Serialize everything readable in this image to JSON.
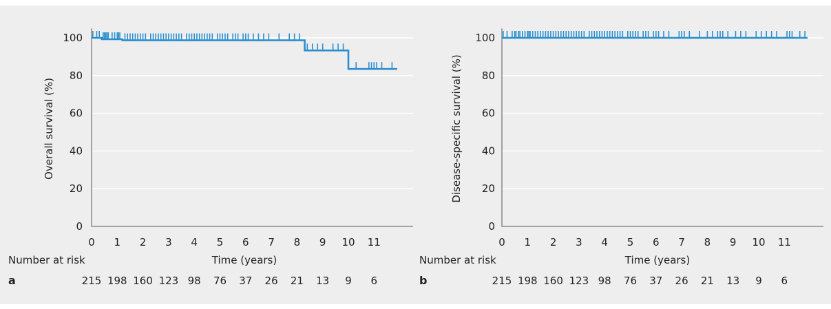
{
  "colors": {
    "curve": "#2a8fcf",
    "grid": "#ffffff",
    "axis": "#555555",
    "background": "#eeeeef"
  },
  "risk_label": "Number at risk",
  "chart_data": [
    {
      "type": "line",
      "panel": "a",
      "ylabel": "Overall survival (%)",
      "xlabel": "Time (years)",
      "xlim": [
        0,
        12
      ],
      "ylim": [
        0,
        105
      ],
      "xticks": [
        0,
        1,
        2,
        3,
        4,
        5,
        6,
        7,
        8,
        9,
        10,
        11
      ],
      "yticks": [
        0,
        20,
        40,
        60,
        80,
        100
      ],
      "grid": "horizontal",
      "series": [
        {
          "steps": [
            [
              0,
              100
            ],
            [
              0.4,
              100
            ],
            [
              0.4,
              99.3
            ],
            [
              1.2,
              99.3
            ],
            [
              1.2,
              98.7
            ],
            [
              8.3,
              98.7
            ],
            [
              8.3,
              93.3
            ],
            [
              10.0,
              93.3
            ],
            [
              10.0,
              83.5
            ],
            [
              11.9,
              83.5
            ]
          ],
          "censor_marks": [
            [
              0.05,
              100
            ],
            [
              0.2,
              100
            ],
            [
              0.3,
              100
            ],
            [
              0.45,
              99.3
            ],
            [
              0.5,
              99.3
            ],
            [
              0.55,
              99.3
            ],
            [
              0.6,
              99.3
            ],
            [
              0.65,
              99.3
            ],
            [
              0.8,
              99.3
            ],
            [
              0.9,
              99.3
            ],
            [
              1.0,
              99.3
            ],
            [
              1.05,
              99.3
            ],
            [
              1.1,
              99.3
            ],
            [
              1.3,
              98.7
            ],
            [
              1.4,
              98.7
            ],
            [
              1.5,
              98.7
            ],
            [
              1.6,
              98.7
            ],
            [
              1.7,
              98.7
            ],
            [
              1.8,
              98.7
            ],
            [
              1.9,
              98.7
            ],
            [
              2.0,
              98.7
            ],
            [
              2.1,
              98.7
            ],
            [
              2.3,
              98.7
            ],
            [
              2.4,
              98.7
            ],
            [
              2.5,
              98.7
            ],
            [
              2.6,
              98.7
            ],
            [
              2.7,
              98.7
            ],
            [
              2.8,
              98.7
            ],
            [
              2.9,
              98.7
            ],
            [
              3.0,
              98.7
            ],
            [
              3.1,
              98.7
            ],
            [
              3.2,
              98.7
            ],
            [
              3.3,
              98.7
            ],
            [
              3.4,
              98.7
            ],
            [
              3.5,
              98.7
            ],
            [
              3.7,
              98.7
            ],
            [
              3.8,
              98.7
            ],
            [
              3.9,
              98.7
            ],
            [
              4.0,
              98.7
            ],
            [
              4.1,
              98.7
            ],
            [
              4.2,
              98.7
            ],
            [
              4.3,
              98.7
            ],
            [
              4.4,
              98.7
            ],
            [
              4.5,
              98.7
            ],
            [
              4.6,
              98.7
            ],
            [
              4.7,
              98.7
            ],
            [
              4.9,
              98.7
            ],
            [
              5.0,
              98.7
            ],
            [
              5.1,
              98.7
            ],
            [
              5.2,
              98.7
            ],
            [
              5.3,
              98.7
            ],
            [
              5.5,
              98.7
            ],
            [
              5.6,
              98.7
            ],
            [
              5.7,
              98.7
            ],
            [
              5.9,
              98.7
            ],
            [
              6.0,
              98.7
            ],
            [
              6.1,
              98.7
            ],
            [
              6.3,
              98.7
            ],
            [
              6.5,
              98.7
            ],
            [
              6.7,
              98.7
            ],
            [
              6.9,
              98.7
            ],
            [
              7.3,
              98.7
            ],
            [
              7.7,
              98.7
            ],
            [
              7.9,
              98.7
            ],
            [
              8.1,
              98.7
            ],
            [
              8.4,
              93.3
            ],
            [
              8.6,
              93.3
            ],
            [
              8.8,
              93.3
            ],
            [
              9.0,
              93.3
            ],
            [
              9.4,
              93.3
            ],
            [
              9.6,
              93.3
            ],
            [
              9.8,
              93.3
            ],
            [
              10.3,
              83.5
            ],
            [
              10.8,
              83.5
            ],
            [
              10.9,
              83.5
            ],
            [
              11.0,
              83.5
            ],
            [
              11.1,
              83.5
            ],
            [
              11.3,
              83.5
            ],
            [
              11.7,
              83.5
            ]
          ]
        }
      ],
      "risk_x": [
        0,
        1,
        2,
        3,
        4,
        5,
        6,
        7,
        8,
        9,
        10,
        11
      ],
      "risk_values": [
        "215",
        "198",
        "160",
        "123",
        "98",
        "76",
        "37",
        "26",
        "21",
        "13",
        "9",
        "6"
      ]
    },
    {
      "type": "line",
      "panel": "b",
      "ylabel": "Disease-specific survival (%)",
      "xlabel": "Time (years)",
      "xlim": [
        0,
        12
      ],
      "ylim": [
        0,
        105
      ],
      "xticks": [
        0,
        1,
        2,
        3,
        4,
        5,
        6,
        7,
        8,
        9,
        10,
        11
      ],
      "yticks": [
        0,
        20,
        40,
        60,
        80,
        100
      ],
      "grid": "horizontal",
      "series": [
        {
          "steps": [
            [
              0,
              100
            ],
            [
              11.9,
              100
            ]
          ],
          "censor_marks": [
            [
              0.05,
              100
            ],
            [
              0.2,
              100
            ],
            [
              0.4,
              100
            ],
            [
              0.5,
              100
            ],
            [
              0.55,
              100
            ],
            [
              0.65,
              100
            ],
            [
              0.7,
              100
            ],
            [
              0.8,
              100
            ],
            [
              0.9,
              100
            ],
            [
              1.0,
              100
            ],
            [
              1.05,
              100
            ],
            [
              1.1,
              100
            ],
            [
              1.2,
              100
            ],
            [
              1.3,
              100
            ],
            [
              1.4,
              100
            ],
            [
              1.5,
              100
            ],
            [
              1.6,
              100
            ],
            [
              1.7,
              100
            ],
            [
              1.8,
              100
            ],
            [
              1.9,
              100
            ],
            [
              2.0,
              100
            ],
            [
              2.1,
              100
            ],
            [
              2.2,
              100
            ],
            [
              2.3,
              100
            ],
            [
              2.4,
              100
            ],
            [
              2.5,
              100
            ],
            [
              2.6,
              100
            ],
            [
              2.7,
              100
            ],
            [
              2.8,
              100
            ],
            [
              2.9,
              100
            ],
            [
              3.0,
              100
            ],
            [
              3.1,
              100
            ],
            [
              3.2,
              100
            ],
            [
              3.4,
              100
            ],
            [
              3.5,
              100
            ],
            [
              3.6,
              100
            ],
            [
              3.7,
              100
            ],
            [
              3.8,
              100
            ],
            [
              3.9,
              100
            ],
            [
              4.0,
              100
            ],
            [
              4.1,
              100
            ],
            [
              4.2,
              100
            ],
            [
              4.3,
              100
            ],
            [
              4.4,
              100
            ],
            [
              4.5,
              100
            ],
            [
              4.6,
              100
            ],
            [
              4.7,
              100
            ],
            [
              4.9,
              100
            ],
            [
              5.0,
              100
            ],
            [
              5.1,
              100
            ],
            [
              5.2,
              100
            ],
            [
              5.3,
              100
            ],
            [
              5.5,
              100
            ],
            [
              5.6,
              100
            ],
            [
              5.7,
              100
            ],
            [
              5.9,
              100
            ],
            [
              6.0,
              100
            ],
            [
              6.1,
              100
            ],
            [
              6.3,
              100
            ],
            [
              6.5,
              100
            ],
            [
              6.9,
              100
            ],
            [
              7.0,
              100
            ],
            [
              7.1,
              100
            ],
            [
              7.3,
              100
            ],
            [
              7.7,
              100
            ],
            [
              8.0,
              100
            ],
            [
              8.2,
              100
            ],
            [
              8.4,
              100
            ],
            [
              8.5,
              100
            ],
            [
              8.6,
              100
            ],
            [
              8.8,
              100
            ],
            [
              9.1,
              100
            ],
            [
              9.3,
              100
            ],
            [
              9.5,
              100
            ],
            [
              9.9,
              100
            ],
            [
              10.1,
              100
            ],
            [
              10.3,
              100
            ],
            [
              10.5,
              100
            ],
            [
              10.7,
              100
            ],
            [
              11.1,
              100
            ],
            [
              11.2,
              100
            ],
            [
              11.3,
              100
            ],
            [
              11.6,
              100
            ],
            [
              11.8,
              100
            ]
          ]
        }
      ],
      "risk_x": [
        0,
        1,
        2,
        3,
        4,
        5,
        6,
        7,
        8,
        9,
        10,
        11
      ],
      "risk_values": [
        "215",
        "198",
        "160",
        "123",
        "98",
        "76",
        "37",
        "26",
        "21",
        "13",
        "9",
        "6"
      ]
    }
  ]
}
